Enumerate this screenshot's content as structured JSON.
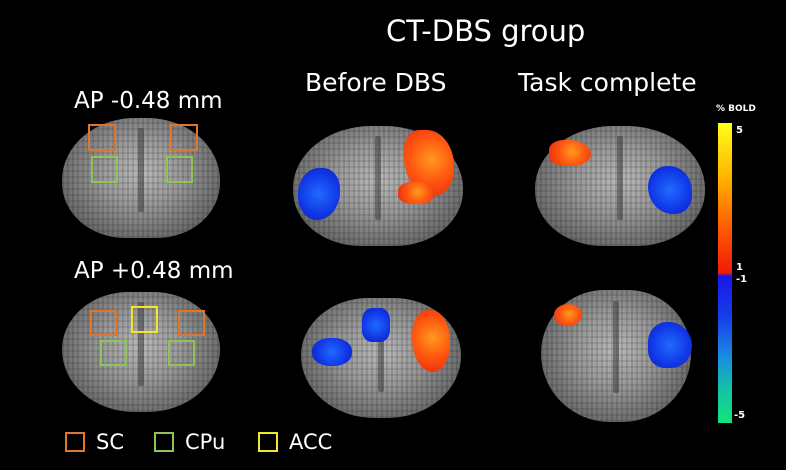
{
  "group_title": "CT-DBS group",
  "columns": [
    "Before DBS",
    "Task complete"
  ],
  "rows": [
    "AP -0.48 mm",
    "AP +0.48 mm"
  ],
  "colorbar": {
    "title": "% BOLD",
    "tick_labels": [
      "5",
      "1",
      "-1",
      "-5"
    ],
    "colors": {
      "positive_max": "#ffff1c",
      "positive_min": "#ee1c0a",
      "negative_min": "#1a16e6",
      "negative_max": "#12e47a"
    }
  },
  "legend": [
    {
      "label": "SC",
      "color": "#e0762d"
    },
    {
      "label": "CPu",
      "color": "#8dc453"
    },
    {
      "label": "ACC",
      "color": "#f2e62b"
    }
  ]
}
